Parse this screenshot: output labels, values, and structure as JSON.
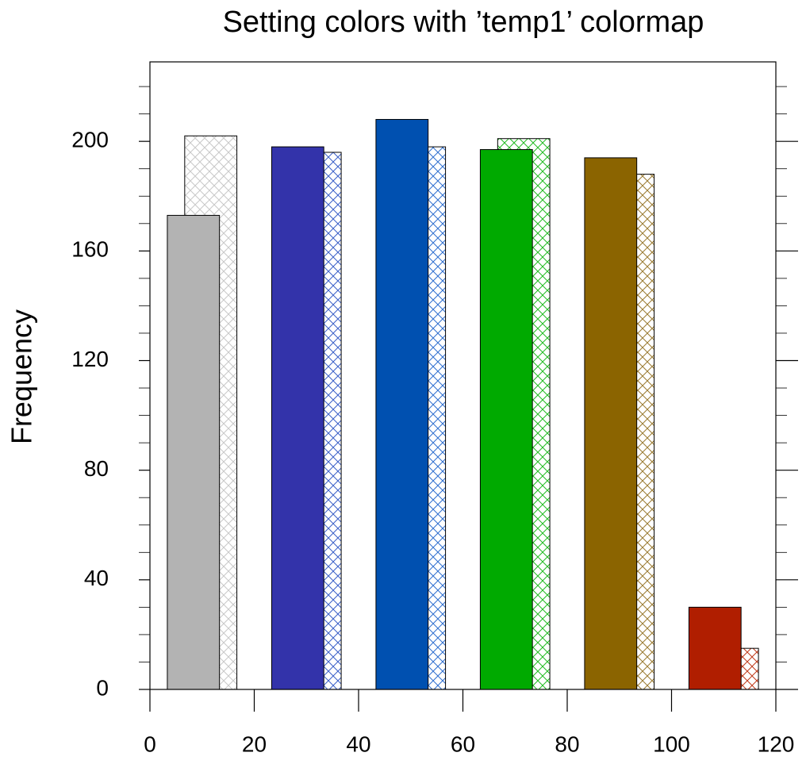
{
  "chart_data": {
    "type": "histogram",
    "title": "Setting colors with ’temp1’ colormap",
    "y_label": "Frequency",
    "bins": [
      0,
      20,
      40,
      60,
      80,
      100,
      120
    ],
    "series": [
      {
        "pattern": "hatch",
        "colors": [
          "#c8c8c8",
          "#3a5fc8",
          "#2f6fd0",
          "#22bb22",
          "#9a7a30",
          "#c03a1a"
        ],
        "values": [
          202,
          196,
          198,
          201,
          188,
          15
        ]
      },
      {
        "pattern": "solid",
        "colors": [
          "#b3b3b3",
          "#3333aa",
          "#0050b0",
          "#00aa00",
          "#8b6400",
          "#b01e00"
        ],
        "values": [
          173,
          198,
          208,
          197,
          194,
          30
        ]
      }
    ],
    "xlim": [
      0,
      120
    ],
    "xticks": [
      0,
      20,
      40,
      60,
      80,
      100,
      120
    ],
    "ylim": [
      0,
      229
    ],
    "yticks": [
      0,
      40,
      80,
      120,
      160,
      200
    ],
    "yminor_ticks": [
      10,
      20,
      30,
      50,
      60,
      70,
      90,
      100,
      110,
      130,
      140,
      150,
      170,
      180,
      190,
      210,
      220
    ],
    "xminor_ticks": []
  }
}
